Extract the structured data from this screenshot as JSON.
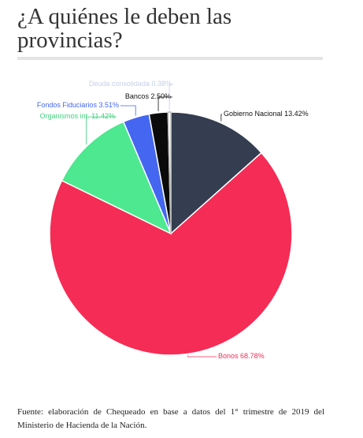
{
  "chart_data": {
    "type": "pie",
    "title": "¿A quiénes le deben las provincias?",
    "categories": [
      "Gobierno Nacional",
      "Bonos",
      "Organismos int.",
      "Fondos Fiduciarios",
      "Bancos",
      "Deuda consolidada"
    ],
    "values": [
      13.42,
      68.78,
      11.42,
      3.51,
      2.5,
      0.38
    ],
    "value_labels": [
      "13.42%",
      "68.78%",
      "11.42%",
      "3.51%",
      "2.50%",
      "0.38%"
    ],
    "colors": [
      "#343e50",
      "#f52c55",
      "#4de88f",
      "#4466f0",
      "#0a0a0a",
      "#ffffff"
    ],
    "label_colors": [
      "#111111",
      "#f52c55",
      "#3fd27e",
      "#4466f0",
      "#111111",
      "#c5d0e6"
    ],
    "source": "Fuente: elaboración de Chequeado en base a datos del 1° trimestre de 2019 del Ministerio de Hacienda de la Nación."
  }
}
